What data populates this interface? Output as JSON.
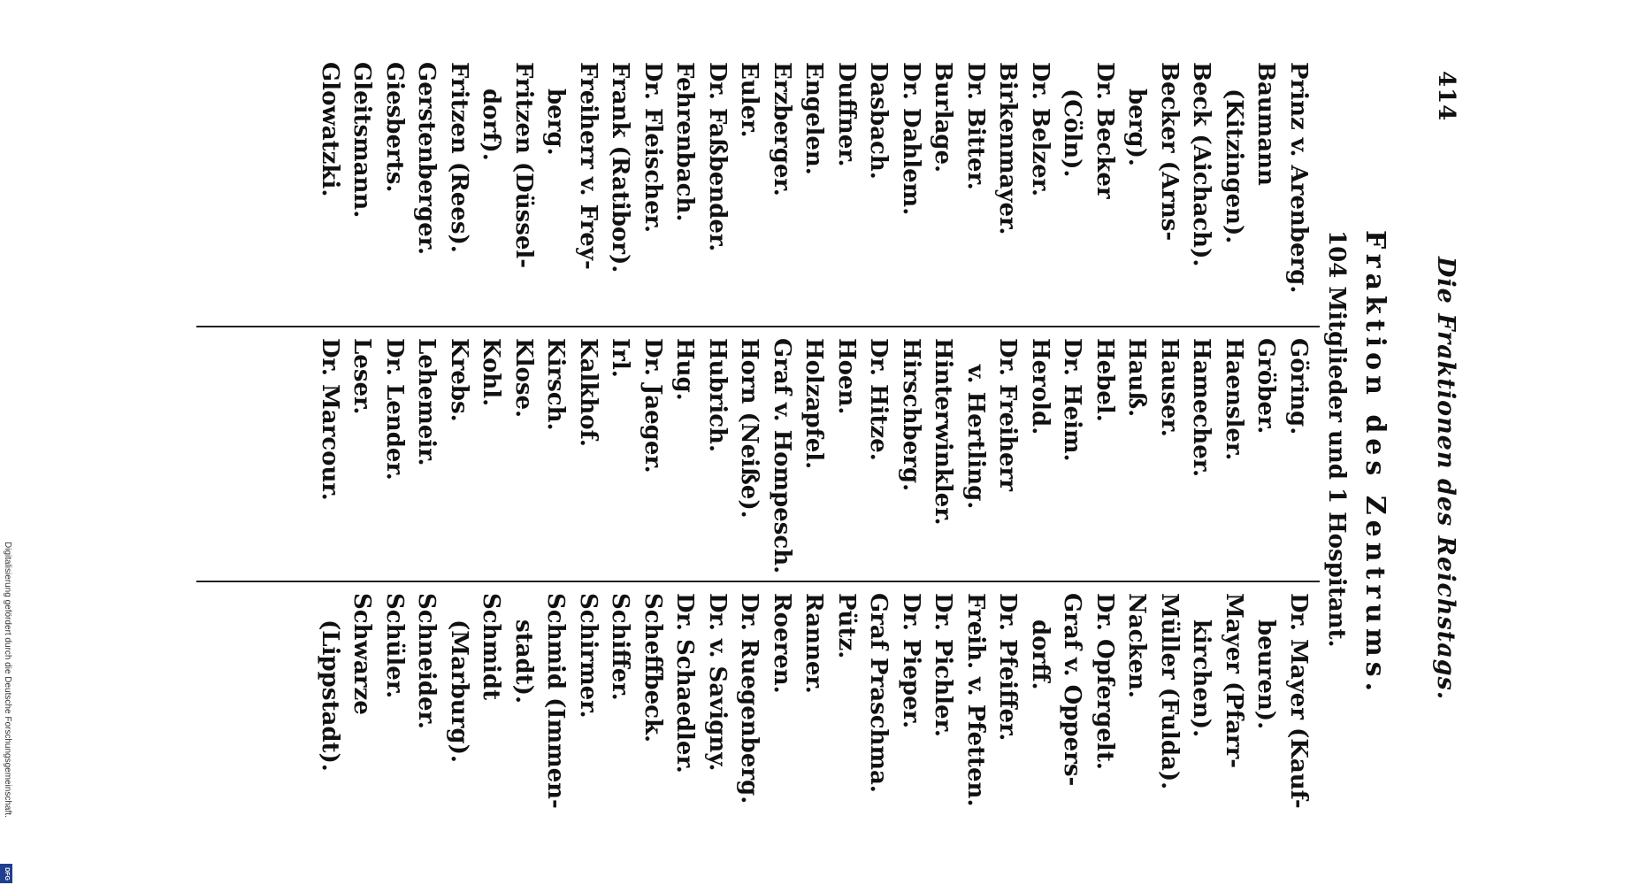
{
  "page": {
    "page_number": "414",
    "running_head": "Die Fraktionen des Reichstags."
  },
  "section": {
    "title": "Fraktion des Zentrums.",
    "subtitle": "104 Mitglieder und 1 Hospitant."
  },
  "columns": [
    {
      "entries": [
        {
          "text": "Prinz v. Arenberg.",
          "cont": false
        },
        {
          "text": "Baumann",
          "cont": false
        },
        {
          "text": "(Kitzingen).",
          "cont": true
        },
        {
          "text": "Beck (Aichach).",
          "cont": false
        },
        {
          "text": "Becker (Arns-",
          "cont": false
        },
        {
          "text": "berg).",
          "cont": true
        },
        {
          "text": "Dr. Becker",
          "cont": false
        },
        {
          "text": "(Cöln).",
          "cont": true
        },
        {
          "text": "Dr. Belzer.",
          "cont": false
        },
        {
          "text": "Birkenmayer.",
          "cont": false
        },
        {
          "text": "Dr. Bitter.",
          "cont": false
        },
        {
          "text": "Burlage.",
          "cont": false
        },
        {
          "text": "Dr. Dahlem.",
          "cont": false
        },
        {
          "text": "Dasbach.",
          "cont": false
        },
        {
          "text": "Duffner.",
          "cont": false
        },
        {
          "text": "Engelen.",
          "cont": false
        },
        {
          "text": "Erzberger.",
          "cont": false
        },
        {
          "text": "Euler.",
          "cont": false
        },
        {
          "text": "Dr. Faßbender.",
          "cont": false
        },
        {
          "text": "Fehrenbach.",
          "cont": false
        },
        {
          "text": "Dr. Fleischer.",
          "cont": false
        },
        {
          "text": "Frank (Ratibor).",
          "cont": false
        },
        {
          "text": "Freiherr v. Frey-",
          "cont": false
        },
        {
          "text": "berg.",
          "cont": true
        },
        {
          "text": "Fritzen (Düssel-",
          "cont": false
        },
        {
          "text": "dorf).",
          "cont": true
        },
        {
          "text": "Fritzen (Rees).",
          "cont": false
        },
        {
          "text": "Gerstenberger.",
          "cont": false
        },
        {
          "text": "Giesberts.",
          "cont": false
        },
        {
          "text": "Gleitsmann.",
          "cont": false
        },
        {
          "text": "Glowatzki.",
          "cont": false
        }
      ]
    },
    {
      "entries": [
        {
          "text": "Göring.",
          "cont": false
        },
        {
          "text": "Gröber.",
          "cont": false
        },
        {
          "text": "Haensler.",
          "cont": false
        },
        {
          "text": "Hamecher.",
          "cont": false
        },
        {
          "text": "Hauser.",
          "cont": false
        },
        {
          "text": "Hauß.",
          "cont": false
        },
        {
          "text": "Hebel.",
          "cont": false
        },
        {
          "text": "Dr. Heim.",
          "cont": false
        },
        {
          "text": "Herold.",
          "cont": false
        },
        {
          "text": "Dr. Freiherr",
          "cont": false
        },
        {
          "text": "v. Hertling.",
          "cont": true
        },
        {
          "text": "Hinterwinkler.",
          "cont": false
        },
        {
          "text": "Hirschberg.",
          "cont": false
        },
        {
          "text": "Dr. Hitze.",
          "cont": false
        },
        {
          "text": "Hoen.",
          "cont": false
        },
        {
          "text": "Holzapfel.",
          "cont": false
        },
        {
          "text": "Graf v. Hompesch.",
          "cont": false
        },
        {
          "text": "Horn (Neiße).",
          "cont": false
        },
        {
          "text": "Hubrich.",
          "cont": false
        },
        {
          "text": "Hug.",
          "cont": false
        },
        {
          "text": "Dr. Jaeger.",
          "cont": false
        },
        {
          "text": "Irl.",
          "cont": false
        },
        {
          "text": "Kalkhof.",
          "cont": false
        },
        {
          "text": "Kirsch.",
          "cont": false
        },
        {
          "text": "Klose.",
          "cont": false
        },
        {
          "text": "Kohl.",
          "cont": false
        },
        {
          "text": "Krebs.",
          "cont": false
        },
        {
          "text": "Lehemeir.",
          "cont": false
        },
        {
          "text": "Dr. Lender.",
          "cont": false
        },
        {
          "text": "Leser.",
          "cont": false
        },
        {
          "text": "Dr. Marcour.",
          "cont": false
        }
      ]
    },
    {
      "entries": [
        {
          "text": "Dr. Mayer (Kauf-",
          "cont": false
        },
        {
          "text": "beuren).",
          "cont": true
        },
        {
          "text": "Mayer (Pfarr-",
          "cont": false
        },
        {
          "text": "kirchen).",
          "cont": true
        },
        {
          "text": "Müller (Fulda).",
          "cont": false
        },
        {
          "text": "Nacken.",
          "cont": false
        },
        {
          "text": "Dr. Opfergelt.",
          "cont": false
        },
        {
          "text": "Graf v. Oppers-",
          "cont": false
        },
        {
          "text": "dorff.",
          "cont": true
        },
        {
          "text": "Dr. Pfeiffer.",
          "cont": false
        },
        {
          "text": "Freih. v. Pfetten.",
          "cont": false
        },
        {
          "text": "Dr. Pichler.",
          "cont": false
        },
        {
          "text": "Dr. Pieper.",
          "cont": false
        },
        {
          "text": "Graf Praschma.",
          "cont": false
        },
        {
          "text": "Pütz.",
          "cont": false
        },
        {
          "text": "Ranner.",
          "cont": false
        },
        {
          "text": "Roeren.",
          "cont": false
        },
        {
          "text": "Dr. Ruegenberg.",
          "cont": false
        },
        {
          "text": "Dr. v. Savigny.",
          "cont": false
        },
        {
          "text": "Dr. Schaedler.",
          "cont": false
        },
        {
          "text": "Scheffbeck.",
          "cont": false
        },
        {
          "text": "Schiffer.",
          "cont": false
        },
        {
          "text": "Schirmer.",
          "cont": false
        },
        {
          "text": "Schmid (Immen-",
          "cont": false
        },
        {
          "text": "stadt).",
          "cont": true
        },
        {
          "text": "Schmidt",
          "cont": false
        },
        {
          "text": "(Marburg).",
          "cont": true
        },
        {
          "text": "Schneider.",
          "cont": false
        },
        {
          "text": "Schüler.",
          "cont": false
        },
        {
          "text": "Schwarze",
          "cont": false
        },
        {
          "text": "(Lippstadt).",
          "cont": true
        }
      ]
    }
  ],
  "footer": {
    "credit": "Digitalisierung gefördert durch die Deutsche Forschungsgemeinschaft.",
    "logo_text": "DFG",
    "logo_color": "#1f3f8f"
  }
}
